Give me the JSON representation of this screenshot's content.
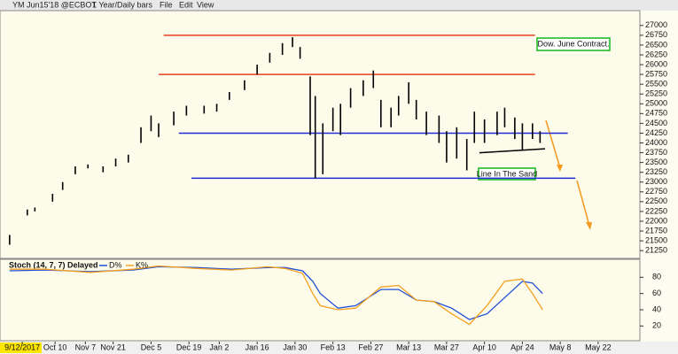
{
  "toolbar": {
    "symbol": "YM Jun15'18 @ECBOT",
    "interval": "1 Year/Daily bars",
    "menus": [
      "File",
      "Edit",
      "View"
    ]
  },
  "chart_data": [
    {
      "type": "range",
      "x": [
        1,
        8,
        11,
        18,
        22,
        27,
        32,
        38,
        43,
        48,
        53,
        57,
        60,
        66,
        71,
        78,
        83,
        88,
        94,
        99,
        104,
        109,
        113,
        116,
        120,
        122,
        125,
        129,
        132,
        136,
        141,
        145,
        148,
        152,
        155,
        159,
        162,
        166,
        171,
        174,
        178,
        182,
        185,
        189,
        194,
        197,
        201,
        204,
        208,
        211
      ],
      "high": [
        21650,
        22300,
        22350,
        22700,
        23000,
        23400,
        23450,
        23400,
        23600,
        23700,
        24400,
        24700,
        24500,
        24800,
        24950,
        24950,
        25000,
        25300,
        25600,
        26000,
        26300,
        26550,
        26700,
        26450,
        25700,
        25200,
        24500,
        24900,
        25000,
        25400,
        25600,
        25850,
        25100,
        24900,
        25200,
        25550,
        25100,
        24800,
        24700,
        24300,
        24400,
        24100,
        24800,
        24600,
        24800,
        24900,
        24650,
        24500,
        24500,
        24300
      ],
      "low": [
        21400,
        22150,
        22250,
        22500,
        22800,
        23200,
        23350,
        23250,
        23400,
        23500,
        24000,
        24300,
        24150,
        24450,
        24700,
        24750,
        24800,
        25100,
        25350,
        25750,
        26050,
        26250,
        26450,
        26150,
        24200,
        23100,
        23200,
        24300,
        24200,
        24900,
        25200,
        25400,
        24400,
        24400,
        24700,
        25000,
        24600,
        24200,
        24000,
        23500,
        23600,
        23300,
        24000,
        24000,
        24200,
        24400,
        24100,
        23800,
        24100,
        24000
      ],
      "color": "#000000",
      "xlim": [
        0,
        260
      ],
      "ylim": [
        21050,
        27380
      ],
      "yticks": [
        21250,
        21500,
        21750,
        22000,
        22250,
        22500,
        22750,
        23000,
        23250,
        23500,
        23750,
        24000,
        24250,
        24500,
        24750,
        25000,
        25250,
        25500,
        25750,
        26000,
        26250,
        26500,
        26750,
        27000
      ],
      "levels": [
        {
          "value": 26750,
          "color": "#e8401c",
          "xrange": [
            62,
            209
          ]
        },
        {
          "value": 25750,
          "color": "#e8401c",
          "xrange": [
            60,
            209
          ]
        },
        {
          "value": 24250,
          "color": "#1f2bd6",
          "xrange": [
            68,
            222
          ]
        },
        {
          "value": 23100,
          "color": "#1f2bd6",
          "xrange": [
            73,
            225
          ]
        }
      ],
      "trendline": {
        "x": [
          187,
          213
        ],
        "y": [
          23750,
          23850
        ],
        "color": "#000000"
      },
      "annotations": [
        "Dow. June Contract.",
        "Line In The Sand"
      ]
    },
    {
      "type": "line",
      "title": "Stoch (14, 7, 7) Delayed",
      "x": [
        1,
        15,
        33,
        50,
        60,
        75,
        89,
        103,
        110,
        117,
        121,
        124,
        131,
        138,
        148,
        155,
        162,
        169,
        176,
        183,
        190,
        197,
        204,
        208,
        212
      ],
      "series": [
        {
          "name": "D%",
          "color": "#1f4fd6",
          "values": [
            88,
            89,
            87,
            89,
            93,
            92,
            90,
            92,
            92,
            88,
            75,
            60,
            42,
            45,
            65,
            65,
            52,
            50,
            42,
            28,
            35,
            55,
            75,
            73,
            60
          ]
        },
        {
          "name": "K%",
          "color": "#f5a020",
          "values": [
            90,
            90,
            86,
            90,
            94,
            91,
            89,
            93,
            91,
            85,
            60,
            45,
            40,
            42,
            68,
            70,
            52,
            50,
            35,
            22,
            45,
            75,
            78,
            60,
            40
          ]
        }
      ],
      "xlim": [
        0,
        260
      ],
      "ylim": [
        4,
        100
      ],
      "yticks": [
        20,
        40,
        60,
        80
      ],
      "xticks": [
        {
          "value": 6,
          "label": "9/12/2017"
        },
        {
          "value": 19,
          "label": "Oct 10"
        },
        {
          "value": 31,
          "label": "Nov 7"
        },
        {
          "value": 42,
          "label": "Nov 21"
        },
        {
          "value": 57,
          "label": "Dec 5"
        },
        {
          "value": 72,
          "label": "Dec 19"
        },
        {
          "value": 84,
          "label": "Jan 2"
        },
        {
          "value": 99,
          "label": "Jan 16"
        },
        {
          "value": 114,
          "label": "Jan 30"
        },
        {
          "value": 129,
          "label": "Feb 13"
        },
        {
          "value": 144,
          "label": "Feb 27"
        },
        {
          "value": 159,
          "label": "Mar 13"
        },
        {
          "value": 174,
          "label": "Mar 27"
        },
        {
          "value": 189,
          "label": "Apr 10"
        },
        {
          "value": 204,
          "label": "Apr 24"
        },
        {
          "value": 219,
          "label": "May 8"
        },
        {
          "value": 234,
          "label": "May 22"
        }
      ]
    }
  ]
}
